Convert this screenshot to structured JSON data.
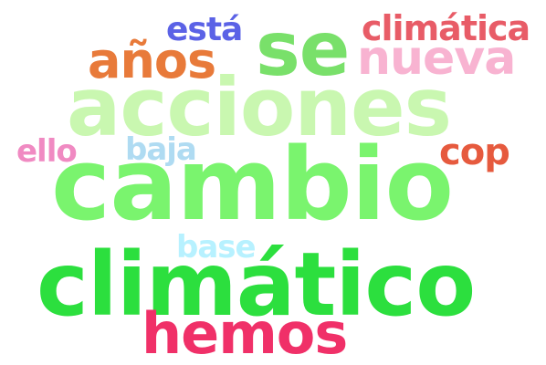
{
  "words": [
    {
      "text": "acciones",
      "color": "#C9F7B0"
    },
    {
      "text": "nueva",
      "color": "#F8B3D1"
    },
    {
      "text": "se",
      "color": "#79E06A"
    },
    {
      "text": "años",
      "color": "#E87A3A"
    },
    {
      "text": "está",
      "color": "#5B62E6"
    },
    {
      "text": "climática",
      "color": "#E85C67"
    },
    {
      "text": "cambio",
      "color": "#7AF46E"
    },
    {
      "text": "ello",
      "color": "#F08AC2"
    },
    {
      "text": "baja",
      "color": "#AFDBF2"
    },
    {
      "text": "cop",
      "color": "#E65A3E"
    },
    {
      "text": "base",
      "color": "#B7F1FF"
    },
    {
      "text": "climático",
      "color": "#2CDF3E"
    },
    {
      "text": "hemos",
      "color": "#F03068"
    }
  ]
}
